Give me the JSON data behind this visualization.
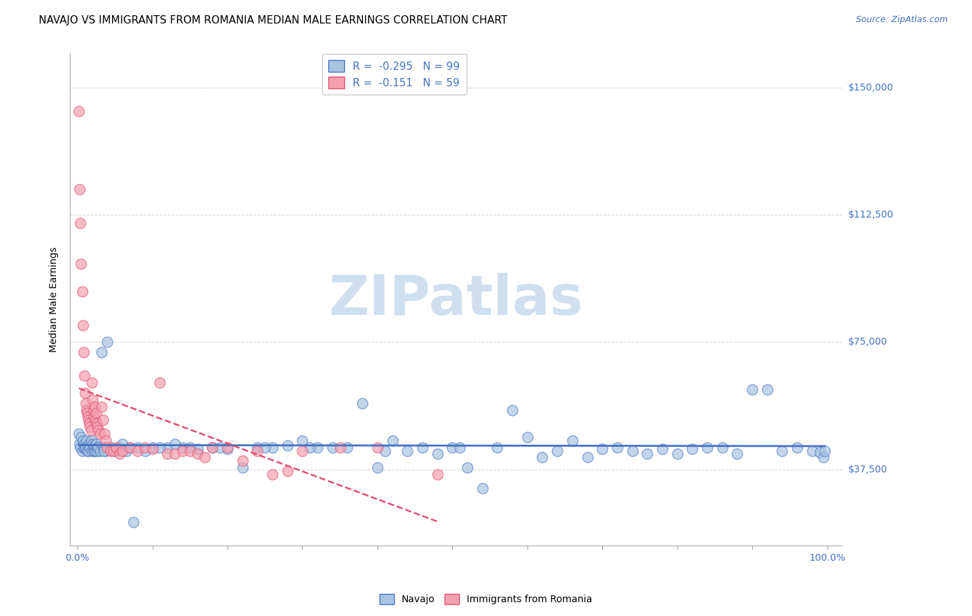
{
  "title": "NAVAJO VS IMMIGRANTS FROM ROMANIA MEDIAN MALE EARNINGS CORRELATION CHART",
  "source": "Source: ZipAtlas.com",
  "xlabel": "",
  "ylabel": "Median Male Earnings",
  "xlim": [
    -0.01,
    1.02
  ],
  "ylim": [
    15000,
    160000
  ],
  "ytick_positions": [
    37500,
    75000,
    112500,
    150000
  ],
  "ytick_labels": [
    "$37,500",
    "$75,000",
    "$112,500",
    "$150,000"
  ],
  "navajo_R": -0.295,
  "navajo_N": 99,
  "romania_R": -0.151,
  "romania_N": 59,
  "navajo_color": "#a8c4e0",
  "romania_color": "#f4a0b0",
  "navajo_line_color": "#4472c4",
  "romania_line_color": "#e05070",
  "background_color": "#ffffff",
  "grid_color": "#d8d8d8",
  "title_fontsize": 11,
  "watermark_text": "ZIPatlas",
  "watermark_color": "#d0dff0",
  "navajo_x": [
    0.002,
    0.003,
    0.004,
    0.005,
    0.006,
    0.007,
    0.008,
    0.009,
    0.01,
    0.011,
    0.012,
    0.013,
    0.014,
    0.015,
    0.016,
    0.017,
    0.018,
    0.019,
    0.02,
    0.021,
    0.022,
    0.023,
    0.024,
    0.025,
    0.026,
    0.027,
    0.028,
    0.03,
    0.032,
    0.034,
    0.036,
    0.038,
    0.04,
    0.045,
    0.05,
    0.055,
    0.06,
    0.065,
    0.07,
    0.08,
    0.09,
    0.1,
    0.12,
    0.14,
    0.16,
    0.18,
    0.2,
    0.22,
    0.24,
    0.26,
    0.28,
    0.3,
    0.32,
    0.34,
    0.36,
    0.38,
    0.4,
    0.42,
    0.44,
    0.46,
    0.48,
    0.5,
    0.52,
    0.54,
    0.56,
    0.58,
    0.6,
    0.62,
    0.64,
    0.66,
    0.68,
    0.7,
    0.72,
    0.74,
    0.76,
    0.78,
    0.8,
    0.82,
    0.84,
    0.86,
    0.88,
    0.9,
    0.92,
    0.94,
    0.96,
    0.98,
    0.99,
    0.995,
    0.997,
    0.035,
    0.075,
    0.11,
    0.13,
    0.15,
    0.19,
    0.25,
    0.31,
    0.41,
    0.51
  ],
  "navajo_y": [
    48000,
    45000,
    44000,
    47000,
    43000,
    46000,
    44000,
    45000,
    43500,
    44000,
    46000,
    43000,
    44500,
    43000,
    45000,
    44000,
    46000,
    43000,
    45000,
    44000,
    43000,
    44500,
    43000,
    45000,
    44000,
    43000,
    44000,
    43000,
    72000,
    44000,
    44000,
    43000,
    75000,
    44000,
    43000,
    44000,
    45000,
    43000,
    44000,
    44000,
    43000,
    44000,
    44000,
    44000,
    43500,
    44000,
    43500,
    38000,
    44000,
    44000,
    44500,
    46000,
    44000,
    44000,
    44000,
    57000,
    38000,
    46000,
    43000,
    44000,
    42000,
    44000,
    38000,
    32000,
    44000,
    55000,
    47000,
    41000,
    43000,
    46000,
    41000,
    43500,
    44000,
    43000,
    42000,
    43500,
    42000,
    43500,
    44000,
    44000,
    42000,
    61000,
    61000,
    43000,
    44000,
    43000,
    42500,
    41000,
    43000,
    43000,
    22000,
    44000,
    45000,
    44000,
    44000,
    44000,
    44000,
    43000,
    44000
  ],
  "romania_x": [
    0.002,
    0.003,
    0.004,
    0.005,
    0.006,
    0.007,
    0.008,
    0.009,
    0.01,
    0.011,
    0.012,
    0.013,
    0.014,
    0.015,
    0.016,
    0.017,
    0.018,
    0.019,
    0.02,
    0.021,
    0.022,
    0.023,
    0.024,
    0.025,
    0.026,
    0.027,
    0.028,
    0.03,
    0.032,
    0.034,
    0.036,
    0.038,
    0.04,
    0.044,
    0.048,
    0.052,
    0.056,
    0.06,
    0.07,
    0.08,
    0.09,
    0.1,
    0.11,
    0.12,
    0.13,
    0.14,
    0.15,
    0.16,
    0.17,
    0.18,
    0.2,
    0.22,
    0.24,
    0.26,
    0.28,
    0.3,
    0.35,
    0.4,
    0.48
  ],
  "romania_y": [
    143000,
    120000,
    110000,
    98000,
    90000,
    80000,
    72000,
    65000,
    60000,
    57000,
    55000,
    54000,
    53000,
    52000,
    51000,
    50000,
    49000,
    63000,
    58000,
    55000,
    53000,
    56000,
    52000,
    54000,
    51000,
    50000,
    49000,
    48000,
    56000,
    52000,
    48000,
    46000,
    44000,
    43000,
    43000,
    44000,
    42000,
    43000,
    44000,
    43000,
    44000,
    43500,
    63000,
    42000,
    42000,
    43000,
    43000,
    42000,
    41000,
    44000,
    44000,
    40000,
    43000,
    36000,
    37000,
    43000,
    44000,
    44000,
    36000
  ]
}
